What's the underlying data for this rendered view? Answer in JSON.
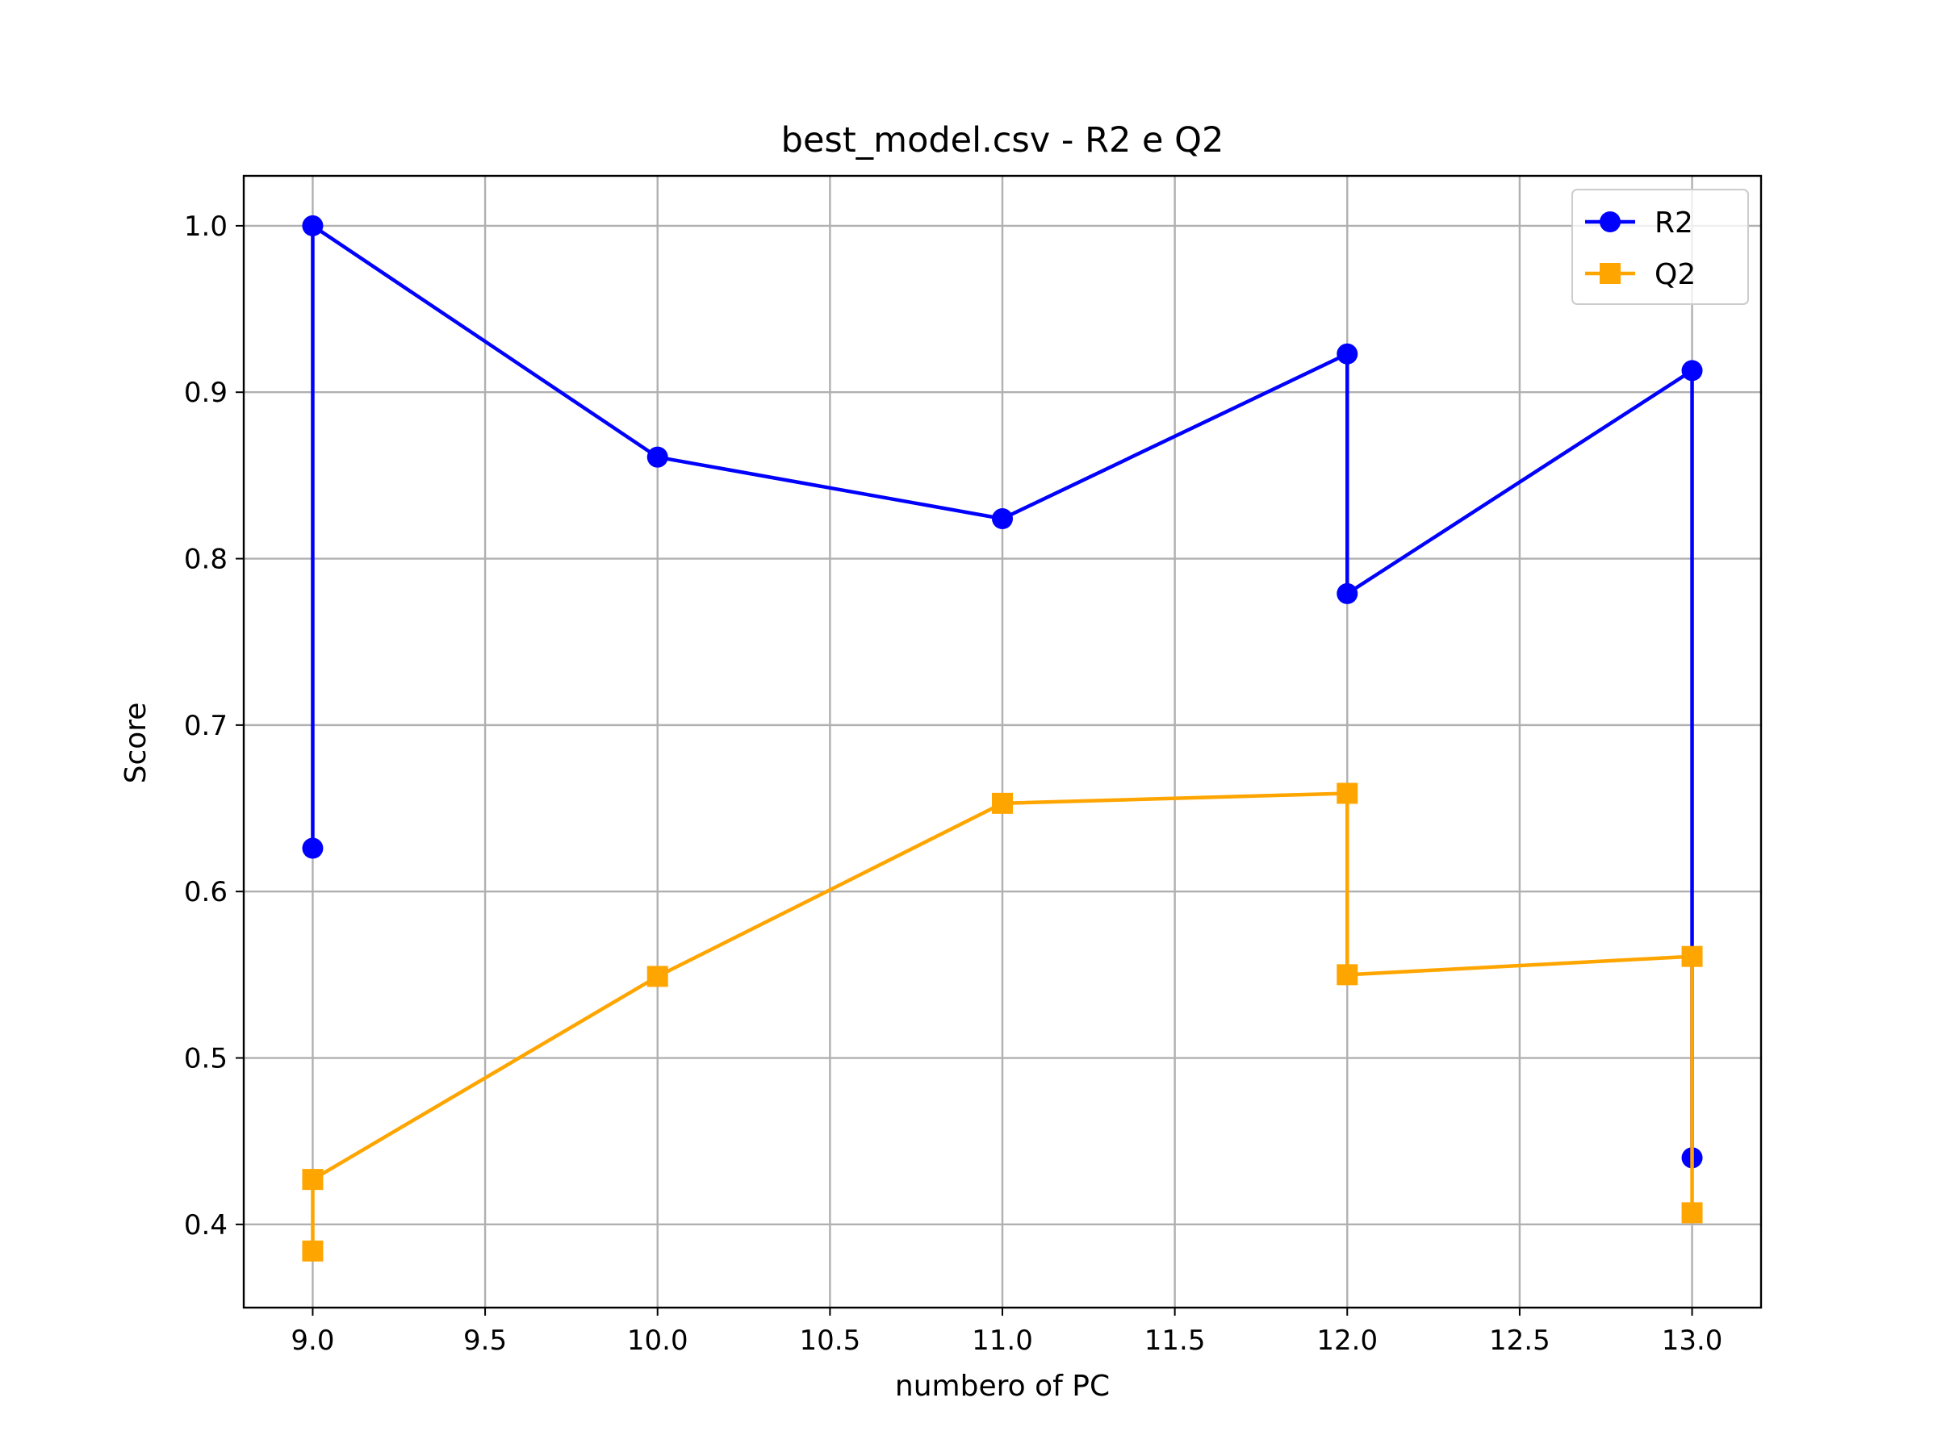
{
  "chart_data": {
    "type": "line",
    "title": "best_model.csv - R2 e Q2",
    "xlabel": "numbero of PC",
    "ylabel": "Score",
    "xlim": [
      8.8,
      13.2
    ],
    "ylim": [
      0.35,
      1.03
    ],
    "x_ticks": [
      9.0,
      9.5,
      10.0,
      10.5,
      11.0,
      11.5,
      12.0,
      12.5,
      13.0
    ],
    "x_tick_labels": [
      "9.0",
      "9.5",
      "10.0",
      "10.5",
      "11.0",
      "11.5",
      "12.0",
      "12.5",
      "13.0"
    ],
    "y_ticks": [
      0.4,
      0.5,
      0.6,
      0.7,
      0.8,
      0.9,
      1.0
    ],
    "y_tick_labels": [
      "0.4",
      "0.5",
      "0.6",
      "0.7",
      "0.8",
      "0.9",
      "1.0"
    ],
    "grid": true,
    "legend": "top-right",
    "series": [
      {
        "name": "R2",
        "color": "#0000ff",
        "marker": "circle",
        "x": [
          9,
          9,
          10,
          11,
          12,
          12,
          13,
          13
        ],
        "y": [
          0.626,
          1.0,
          0.861,
          0.824,
          0.923,
          0.779,
          0.913,
          0.44
        ]
      },
      {
        "name": "Q2",
        "color": "#ffa500",
        "marker": "square",
        "x": [
          9,
          9,
          10,
          11,
          12,
          12,
          13,
          13
        ],
        "y": [
          0.384,
          0.427,
          0.549,
          0.653,
          0.659,
          0.55,
          0.561,
          0.407
        ]
      }
    ]
  }
}
